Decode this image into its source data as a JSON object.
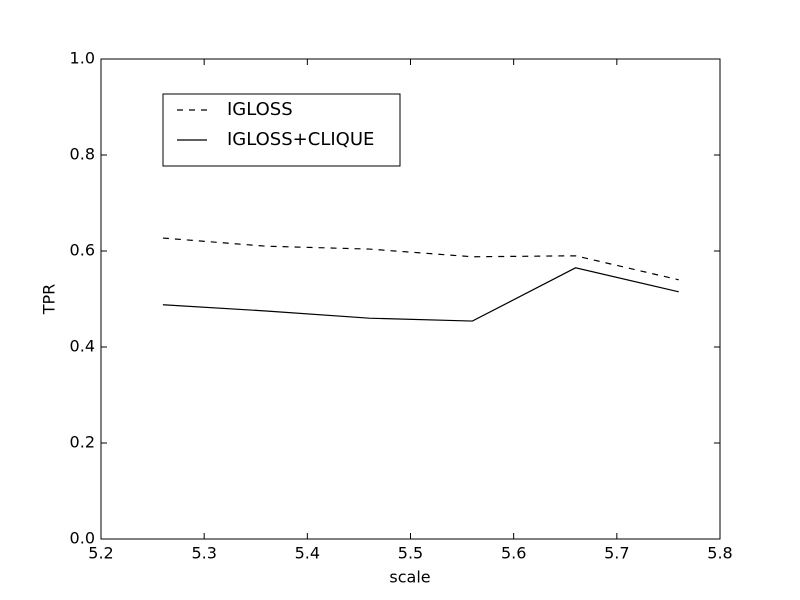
{
  "chart_data": {
    "type": "line",
    "x_label": "scale",
    "y_label": "TPR",
    "x": [
      5.26,
      5.36,
      5.46,
      5.56,
      5.66,
      5.76
    ],
    "series": [
      {
        "name": "IGLOSS",
        "color": "#000000",
        "linestyle": "dashed",
        "values": [
          0.627,
          0.61,
          0.604,
          0.588,
          0.59,
          0.54
        ]
      },
      {
        "name": "IGLOSS+CLIQUE",
        "color": "#000000",
        "linestyle": "solid",
        "values": [
          0.488,
          0.475,
          0.46,
          0.454,
          0.565,
          0.515
        ]
      }
    ],
    "xlim": [
      5.2,
      5.8
    ],
    "xticks": [
      5.2,
      5.3,
      5.4,
      5.5,
      5.6,
      5.7,
      5.8
    ],
    "ylim": [
      0,
      1
    ],
    "yticks": [
      {
        "value": 0,
        "label": "0.0"
      },
      0.2,
      0.4,
      0.6,
      0.8,
      {
        "value": 1,
        "label": "1.0"
      }
    ],
    "grid": false,
    "legend_loc": "upper left"
  }
}
